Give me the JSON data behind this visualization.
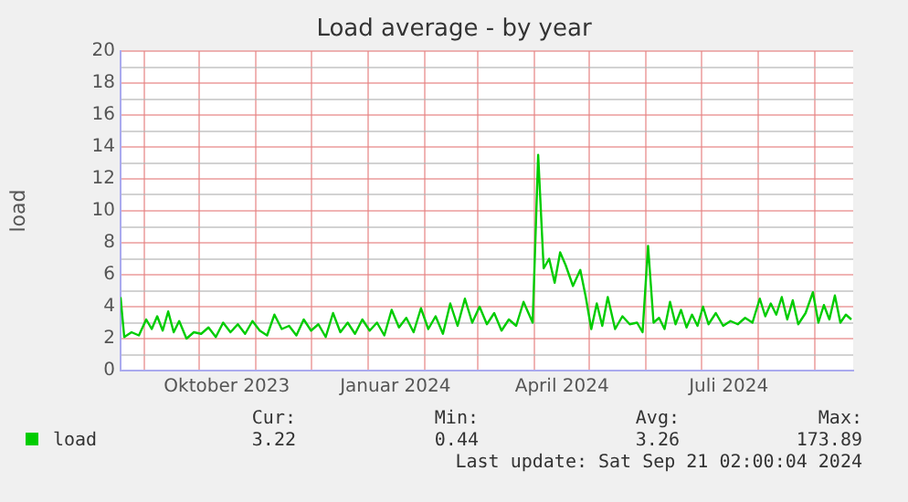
{
  "chart_data": {
    "type": "line",
    "title": "Load average - by year",
    "ylabel": "load",
    "xlim": [
      "2023-08-19",
      "2024-09-22"
    ],
    "ylim": [
      0,
      20
    ],
    "xticks": [
      {
        "value": "2023-09-01",
        "label": null
      },
      {
        "value": "2023-10-01",
        "label": null
      },
      {
        "value": "2023-10-16",
        "label": "Oktober 2023"
      },
      {
        "value": "2023-11-01",
        "label": null
      },
      {
        "value": "2023-12-01",
        "label": null
      },
      {
        "value": "2024-01-01",
        "label": null
      },
      {
        "value": "2024-01-16",
        "label": "Januar 2024"
      },
      {
        "value": "2024-02-01",
        "label": null
      },
      {
        "value": "2024-03-01",
        "label": null
      },
      {
        "value": "2024-04-01",
        "label": null
      },
      {
        "value": "2024-04-16",
        "label": "April 2024"
      },
      {
        "value": "2024-05-01",
        "label": null
      },
      {
        "value": "2024-06-01",
        "label": null
      },
      {
        "value": "2024-07-01",
        "label": null
      },
      {
        "value": "2024-07-16",
        "label": "Juli 2024"
      },
      {
        "value": "2024-08-01",
        "label": null
      },
      {
        "value": "2024-09-01",
        "label": null
      }
    ],
    "yticks": [
      0,
      {
        "value": 1,
        "label": null
      },
      2,
      {
        "value": 3,
        "label": null
      },
      4,
      {
        "value": 5,
        "label": null
      },
      6,
      {
        "value": 7,
        "label": null
      },
      8,
      {
        "value": 9,
        "label": null
      },
      10,
      {
        "value": 11,
        "label": null
      },
      12,
      {
        "value": 13,
        "label": null
      },
      14,
      {
        "value": 15,
        "label": null
      },
      16,
      {
        "value": 17,
        "label": null
      },
      18,
      {
        "value": 19,
        "label": null
      },
      20
    ],
    "grid": true,
    "legend": "bottom",
    "marker": "none",
    "line_style": "solid",
    "annotations": [
      "Cur:",
      "Min:",
      "Avg:",
      "Max:",
      "3.22",
      "0.44",
      "3.26",
      "173.89",
      "Last update: Sat Sep 21 02:00:04 2024"
    ],
    "x": [
      "2023-08-19",
      "2023-08-21",
      "2023-08-25",
      "2023-08-29",
      "2023-09-02",
      "2023-09-05",
      "2023-09-08",
      "2023-09-11",
      "2023-09-14",
      "2023-09-17",
      "2023-09-20",
      "2023-09-24",
      "2023-09-28",
      "2023-10-02",
      "2023-10-06",
      "2023-10-10",
      "2023-10-14",
      "2023-10-18",
      "2023-10-22",
      "2023-10-26",
      "2023-10-30",
      "2023-11-03",
      "2023-11-07",
      "2023-11-11",
      "2023-11-15",
      "2023-11-19",
      "2023-11-23",
      "2023-11-27",
      "2023-12-01",
      "2023-12-05",
      "2023-12-09",
      "2023-12-13",
      "2023-12-17",
      "2023-12-21",
      "2023-12-25",
      "2023-12-29",
      "2024-01-02",
      "2024-01-06",
      "2024-01-10",
      "2024-01-14",
      "2024-01-18",
      "2024-01-22",
      "2024-01-26",
      "2024-01-30",
      "2024-02-03",
      "2024-02-07",
      "2024-02-11",
      "2024-02-15",
      "2024-02-19",
      "2024-02-23",
      "2024-02-27",
      "2024-03-02",
      "2024-03-06",
      "2024-03-10",
      "2024-03-14",
      "2024-03-18",
      "2024-03-22",
      "2024-03-26",
      "2024-03-31",
      "2024-04-03",
      "2024-04-06",
      "2024-04-09",
      "2024-04-12",
      "2024-04-15",
      "2024-04-18",
      "2024-04-22",
      "2024-04-26",
      "2024-04-29",
      "2024-05-02",
      "2024-05-05",
      "2024-05-08",
      "2024-05-11",
      "2024-05-15",
      "2024-05-19",
      "2024-05-23",
      "2024-05-27",
      "2024-05-30",
      "2024-06-02",
      "2024-06-05",
      "2024-06-08",
      "2024-06-11",
      "2024-06-14",
      "2024-06-17",
      "2024-06-20",
      "2024-06-23",
      "2024-06-26",
      "2024-06-29",
      "2024-07-02",
      "2024-07-05",
      "2024-07-09",
      "2024-07-13",
      "2024-07-17",
      "2024-07-21",
      "2024-07-25",
      "2024-07-29",
      "2024-08-02",
      "2024-08-05",
      "2024-08-08",
      "2024-08-11",
      "2024-08-14",
      "2024-08-17",
      "2024-08-20",
      "2024-08-23",
      "2024-08-27",
      "2024-08-31",
      "2024-09-03",
      "2024-09-06",
      "2024-09-09",
      "2024-09-12",
      "2024-09-15",
      "2024-09-18",
      "2024-09-21"
    ],
    "series": [
      {
        "name": "load",
        "color": "#00cc00",
        "values": [
          4.6,
          2.1,
          2.4,
          2.2,
          3.2,
          2.6,
          3.4,
          2.5,
          3.7,
          2.4,
          3.1,
          2.0,
          2.4,
          2.3,
          2.7,
          2.1,
          3.0,
          2.4,
          2.9,
          2.3,
          3.1,
          2.5,
          2.2,
          3.5,
          2.6,
          2.8,
          2.2,
          3.2,
          2.5,
          2.9,
          2.1,
          3.6,
          2.4,
          3.0,
          2.3,
          3.2,
          2.5,
          3.0,
          2.2,
          3.8,
          2.7,
          3.3,
          2.4,
          3.9,
          2.6,
          3.4,
          2.3,
          4.2,
          2.8,
          4.5,
          3.0,
          4.0,
          2.9,
          3.6,
          2.5,
          3.2,
          2.8,
          4.3,
          3.0,
          13.5,
          6.4,
          7.0,
          5.5,
          7.4,
          6.6,
          5.3,
          6.3,
          4.6,
          2.6,
          4.2,
          2.8,
          4.6,
          2.6,
          3.4,
          2.9,
          3.0,
          2.4,
          7.8,
          3.0,
          3.3,
          2.6,
          4.3,
          2.9,
          3.8,
          2.7,
          3.5,
          2.8,
          4.0,
          2.9,
          3.6,
          2.8,
          3.1,
          2.9,
          3.3,
          3.0,
          4.5,
          3.4,
          4.2,
          3.5,
          4.6,
          3.2,
          4.4,
          2.9,
          3.6,
          4.9,
          3.0,
          4.1,
          3.2,
          4.7,
          3.0,
          3.5,
          3.2
        ]
      }
    ]
  }
}
